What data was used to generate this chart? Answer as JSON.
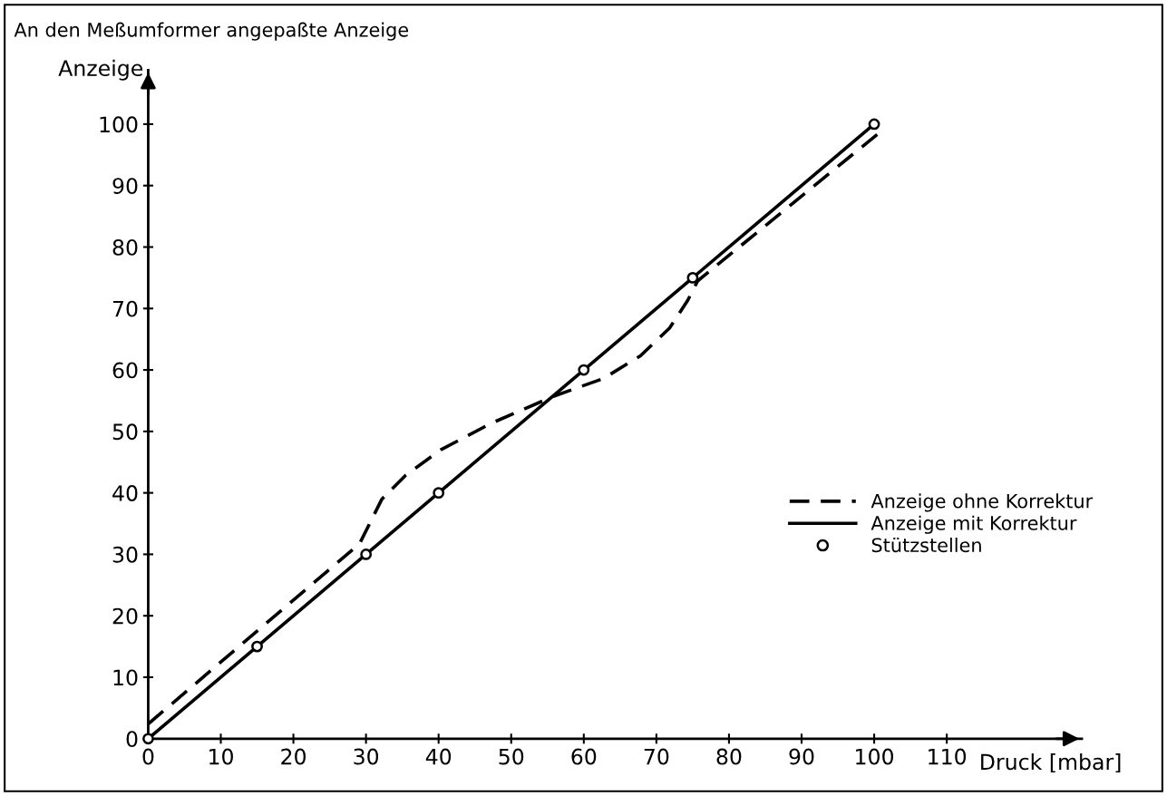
{
  "chart_data": {
    "type": "line",
    "title": "An den Meßumformer angepaßte Anzeige",
    "xlabel": "Druck [mbar]",
    "ylabel": "Anzeige",
    "xlim": [
      0,
      128.6
    ],
    "ylim": [
      0,
      108.8
    ],
    "xticks": [
      0,
      10,
      20,
      30,
      40,
      50,
      60,
      70,
      80,
      90,
      100,
      110
    ],
    "yticks": [
      0,
      10,
      20,
      30,
      40,
      50,
      60,
      70,
      80,
      90,
      100
    ],
    "grid": false,
    "legend": "right",
    "series": [
      {
        "name": "Anzeige ohne Korrektur",
        "line_style": "dashed",
        "color": "#000000",
        "x": [
          0,
          29.1,
          32.2,
          35.4,
          40.3,
          47.2,
          55.8,
          62.7,
          67.8,
          71.8,
          74.3,
          75.7,
          100.6
        ],
        "values": [
          2.4,
          31.7,
          39,
          42.8,
          47,
          51.3,
          55.7,
          58.6,
          62.3,
          66.8,
          71.3,
          74.5,
          98.5
        ]
      },
      {
        "name": "Anzeige mit Korrektur",
        "line_style": "solid",
        "color": "#000000",
        "x": [
          0,
          100
        ],
        "values": [
          0,
          100
        ]
      },
      {
        "name": "Stützstellen",
        "type": "scatter",
        "marker": "circle",
        "color": "#000000",
        "x": [
          0,
          15,
          30,
          40,
          60,
          75,
          100
        ],
        "values": [
          0,
          15,
          30,
          40,
          60,
          75,
          100
        ]
      }
    ]
  }
}
